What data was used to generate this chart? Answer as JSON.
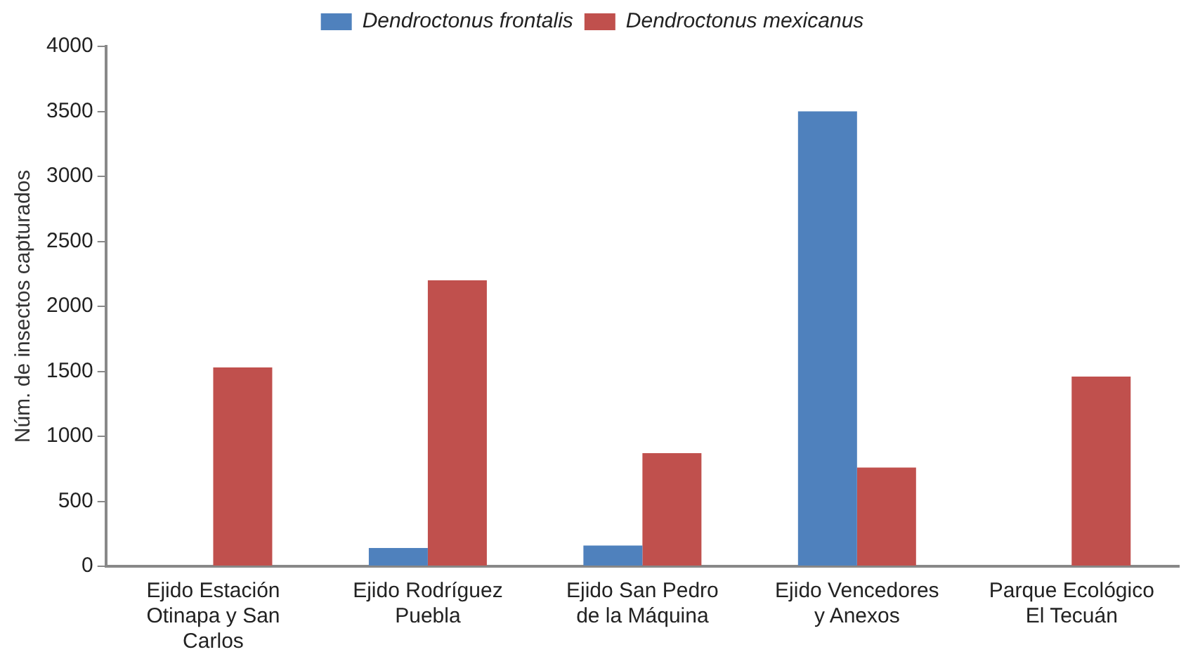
{
  "chart_data": {
    "type": "bar",
    "ylabel": "Núm. de insectos capturados",
    "categories": [
      "Ejido Estación Otinapa y San Carlos",
      "Ejido Rodríguez Puebla",
      "Ejido San Pedro de la Máquina",
      "Ejido Vencedores y Anexos",
      "Parque Ecológico El Tecuán"
    ],
    "series": [
      {
        "name": "Dendroctonus frontalis",
        "color": "#4f81bd",
        "values": [
          null,
          140,
          160,
          3500,
          0
        ]
      },
      {
        "name": "Dendroctonus mexicanus",
        "color": "#c0504d",
        "values": [
          1530,
          2200,
          870,
          760,
          1460
        ]
      }
    ],
    "ylim": [
      0,
      4000
    ],
    "yticks": [
      0,
      500,
      1000,
      1500,
      2000,
      2500,
      3000,
      3500,
      4000
    ],
    "grid": false,
    "legend": "top"
  }
}
